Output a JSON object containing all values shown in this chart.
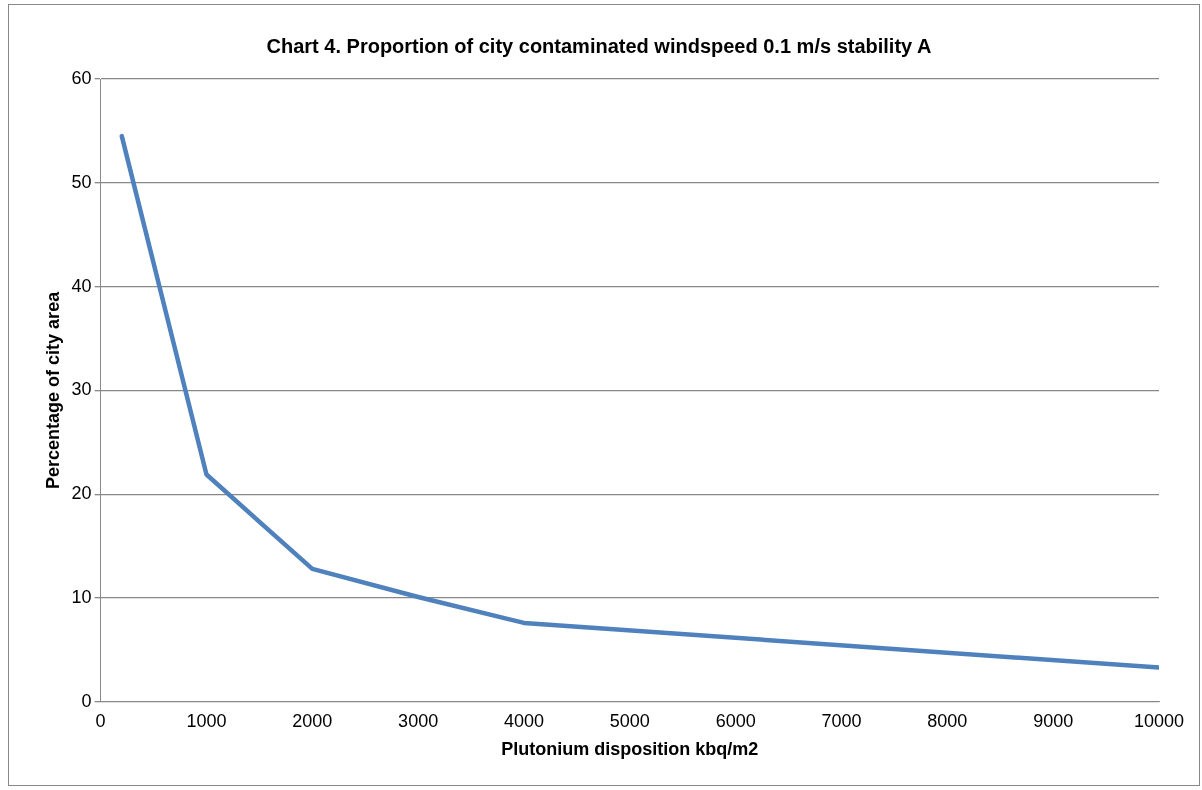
{
  "chart_data": {
    "type": "line",
    "title": "Chart 4. Proportion of city contaminated windspeed 0.1 m/s stability A",
    "xlabel": "Plutonium disposition kbq/m2",
    "ylabel": "Percentage of city area",
    "x": [
      200,
      1000,
      2000,
      3000,
      4000,
      10000
    ],
    "series": [
      {
        "color": "#4f81bd",
        "values": [
          54.5,
          21.9,
          12.8,
          10.1,
          7.6,
          3.3
        ]
      }
    ],
    "xlim": [
      0,
      10000
    ],
    "xticks": [
      0,
      1000,
      2000,
      3000,
      4000,
      5000,
      6000,
      7000,
      8000,
      9000,
      10000
    ],
    "ylim": [
      0,
      60
    ],
    "yticks": [
      0,
      10,
      20,
      30,
      40,
      50,
      60
    ],
    "grid": "y",
    "legend": false,
    "marker": "none",
    "line_style": "solid"
  }
}
